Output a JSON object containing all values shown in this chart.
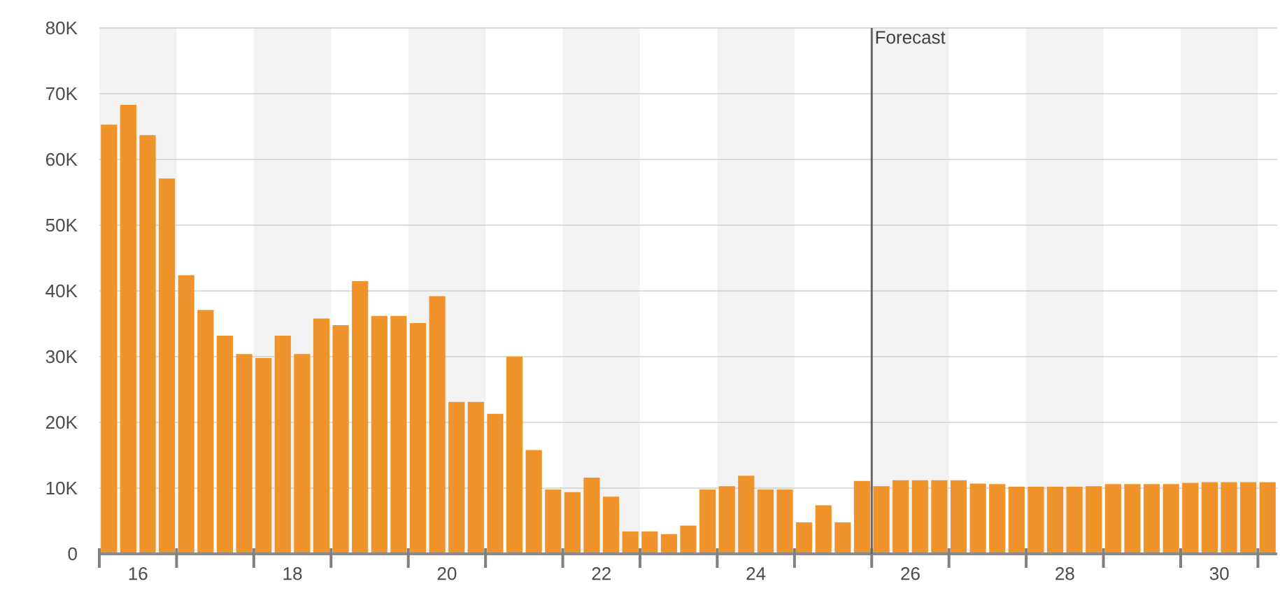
{
  "chart_data": {
    "type": "bar",
    "color": "#f0932b",
    "x": [
      15.625,
      15.875,
      16.125,
      16.375,
      16.625,
      16.875,
      17.125,
      17.375,
      17.625,
      17.875,
      18.125,
      18.375,
      18.625,
      18.875,
      19.125,
      19.375,
      19.625,
      19.875,
      20.125,
      20.375,
      20.625,
      20.875,
      21.125,
      21.375,
      21.625,
      21.875,
      22.125,
      22.375,
      22.625,
      22.875,
      23.125,
      23.375,
      23.625,
      23.875,
      24.125,
      24.375,
      24.625,
      24.875,
      25.125,
      25.375,
      25.625,
      25.875,
      26.125,
      26.375,
      26.625,
      26.875,
      27.125,
      27.375,
      27.625,
      27.875,
      28.125,
      28.375,
      28.625,
      28.875,
      29.125,
      29.375,
      29.625,
      29.875,
      30.125,
      30.375,
      30.625
    ],
    "values": [
      65300,
      68300,
      63700,
      57100,
      42400,
      37100,
      33200,
      30400,
      29800,
      33200,
      30400,
      35800,
      34800,
      41500,
      36200,
      36200,
      35100,
      39200,
      23100,
      23100,
      21300,
      30000,
      15800,
      9800,
      9400,
      11600,
      8700,
      3400,
      3400,
      3000,
      4300,
      9800,
      10300,
      11900,
      9800,
      9800,
      4800,
      7400,
      4800,
      11100,
      10300,
      11200,
      11200,
      11200,
      11200,
      10700,
      10600,
      10200,
      10200,
      10200,
      10200,
      10300,
      10600,
      10600,
      10600,
      10600,
      10800,
      10900,
      10900,
      10900,
      10900
    ],
    "xlim": [
      15.5,
      30.75
    ],
    "xticks": [
      {
        "value": 15.5,
        "label": null
      },
      16,
      {
        "value": 16.5,
        "label": null
      },
      {
        "value": 17.5,
        "label": null
      },
      18,
      {
        "value": 18.5,
        "label": null
      },
      {
        "value": 19.5,
        "label": null
      },
      20,
      {
        "value": 20.5,
        "label": null
      },
      {
        "value": 21.5,
        "label": null
      },
      22,
      {
        "value": 22.5,
        "label": null
      },
      {
        "value": 23.5,
        "label": null
      },
      24,
      {
        "value": 24.5,
        "label": null
      },
      {
        "value": 25.5,
        "label": null
      },
      26,
      {
        "value": 26.5,
        "label": null
      },
      {
        "value": 27.5,
        "label": null
      },
      28,
      {
        "value": 28.5,
        "label": null
      },
      {
        "value": 29.5,
        "label": null
      },
      30,
      {
        "value": 30.5,
        "label": null
      }
    ],
    "ylim": [
      0,
      80000
    ],
    "yticks": [
      0,
      {
        "value": 10000,
        "label": "10K"
      },
      {
        "value": 20000,
        "label": "20K"
      },
      {
        "value": 30000,
        "label": "30K"
      },
      {
        "value": 40000,
        "label": "40K"
      },
      {
        "value": 50000,
        "label": "50K"
      },
      {
        "value": 60000,
        "label": "60K"
      },
      {
        "value": 70000,
        "label": "70K"
      },
      {
        "value": 80000,
        "label": "80K"
      }
    ],
    "grid": "y",
    "ref_lines": [
      {
        "axis": "x",
        "value": 25.5,
        "label": "Forecast",
        "color": "#666666"
      }
    ],
    "bands": [
      {
        "axis": "x",
        "from": 15.5,
        "to": 16.5,
        "color": "#f2f2f2"
      },
      {
        "axis": "x",
        "from": 17.5,
        "to": 18.5,
        "color": "#f2f2f2"
      },
      {
        "axis": "x",
        "from": 19.5,
        "to": 20.5,
        "color": "#f2f2f2"
      },
      {
        "axis": "x",
        "from": 21.5,
        "to": 22.5,
        "color": "#f2f2f2"
      },
      {
        "axis": "x",
        "from": 23.5,
        "to": 24.5,
        "color": "#f2f2f2"
      },
      {
        "axis": "x",
        "from": 25.5,
        "to": 26.5,
        "color": "#f2f2f2"
      },
      {
        "axis": "x",
        "from": 27.5,
        "to": 28.5,
        "color": "#f2f2f2"
      },
      {
        "axis": "x",
        "from": 29.5,
        "to": 30.5,
        "color": "#f2f2f2"
      }
    ]
  }
}
